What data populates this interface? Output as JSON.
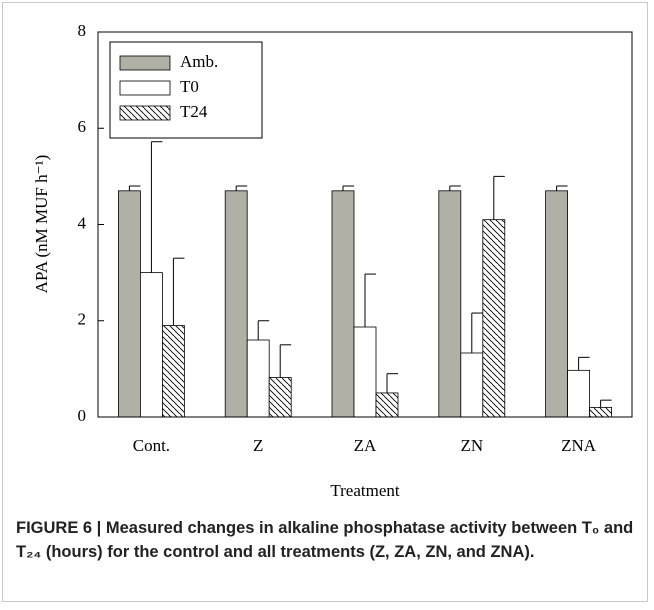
{
  "chart_data": {
    "type": "bar",
    "y_label": "APA (nM MUF h⁻¹)",
    "x_label": "Treatment",
    "categories": [
      "Cont.",
      "Z",
      "ZA",
      "ZN",
      "ZNA"
    ],
    "series": [
      {
        "name": "Amb.",
        "color": "#b1b0a7",
        "values": [
          4.7,
          4.7,
          4.7,
          4.7,
          4.7
        ],
        "errors": [
          0.1,
          0.1,
          0.1,
          0.1,
          0.1
        ]
      },
      {
        "name": "T0",
        "color": "#ffffff",
        "values": [
          3.0,
          1.6,
          1.87,
          1.33,
          0.97
        ],
        "errors": [
          2.72,
          0.4,
          1.1,
          0.83,
          0.27
        ]
      },
      {
        "name": "T24",
        "color": "#ffffff",
        "hatch": true,
        "values": [
          1.9,
          0.82,
          0.5,
          4.1,
          0.2
        ],
        "errors": [
          1.4,
          0.68,
          0.4,
          0.9,
          0.15
        ]
      }
    ],
    "ylim": [
      0,
      8
    ],
    "yticks": [
      0,
      2,
      4,
      6,
      8
    ],
    "grid": false,
    "legend": "upper left",
    "caption": "FIGURE 6 | Measured changes in alkaline phosphatase activity between T₀ and T₂₄ (hours) for the control and all treatments (Z, ZA, ZN, and ZNA)."
  }
}
